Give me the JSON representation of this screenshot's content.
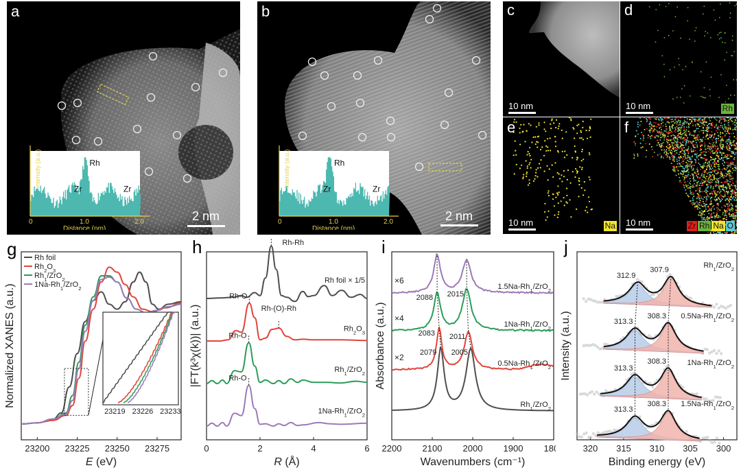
{
  "panels": {
    "a": {
      "label": "a",
      "scale": "2 nm",
      "inset": {
        "ylabel": "Intensity (a.u.)",
        "xlabel": "Distance (nm)",
        "xticks": [
          "0",
          "1.0",
          "2.0"
        ],
        "peak_labels": [
          "Zr",
          "Rh",
          "Zr"
        ]
      }
    },
    "b": {
      "label": "b",
      "scale": "2 nm",
      "inset": {
        "ylabel": "Intensity (a.u.)",
        "xlabel": "Distance (nm)",
        "xticks": [
          "0",
          "1.0",
          "2.0"
        ],
        "peak_labels": [
          "Zr",
          "Rh",
          "Zr"
        ]
      }
    },
    "c": {
      "label": "c",
      "scale": "10 nm"
    },
    "d": {
      "label": "d",
      "scale": "10 nm",
      "element": "Rh",
      "color": "#6db33f"
    },
    "e": {
      "label": "e",
      "scale": "10 nm",
      "element": "Na",
      "color": "#f2e530"
    },
    "f": {
      "label": "f",
      "scale": "10 nm",
      "elements": [
        {
          "name": "Zr",
          "color": "#e0201b"
        },
        {
          "name": "Rh",
          "color": "#6db33f"
        },
        {
          "name": "Na",
          "color": "#f2e530"
        },
        {
          "name": "O",
          "color": "#5ec8d4"
        }
      ]
    }
  },
  "chart_data": [
    {
      "id": "g",
      "label": "g",
      "type": "line",
      "title": "",
      "xlabel_italic": "E",
      "xlabel_unit": " (eV)",
      "ylabel": "Normalized XANES (a.u.)",
      "xlim": [
        23190,
        23290
      ],
      "xticks": [
        "23200",
        "23225",
        "23250",
        "23275"
      ],
      "xtick_values": [
        23200,
        23225,
        23250,
        23275
      ],
      "legend_position": "top-left",
      "series": [
        {
          "name": "Rh foil",
          "color": "#4d4d4d",
          "points": [
            [
              23190,
              0.05
            ],
            [
              23200,
              0.06
            ],
            [
              23210,
              0.09
            ],
            [
              23215,
              0.14
            ],
            [
              23220,
              0.35
            ],
            [
              23225,
              0.62
            ],
            [
              23230,
              0.88
            ],
            [
              23235,
              1.05
            ],
            [
              23240,
              1.12
            ],
            [
              23245,
              1.02
            ],
            [
              23250,
              0.98
            ],
            [
              23255,
              1.04
            ],
            [
              23260,
              1.2
            ],
            [
              23264,
              1.28
            ],
            [
              23268,
              1.2
            ],
            [
              23272,
              1.02
            ],
            [
              23276,
              0.98
            ],
            [
              23282,
              1.02
            ],
            [
              23290,
              1.04
            ]
          ]
        },
        {
          "name": "Rh2O3",
          "color": "#e0443b",
          "points": [
            [
              23190,
              0.05
            ],
            [
              23200,
              0.06
            ],
            [
              23210,
              0.08
            ],
            [
              23218,
              0.12
            ],
            [
              23222,
              0.2
            ],
            [
              23226,
              0.42
            ],
            [
              23230,
              0.72
            ],
            [
              23235,
              0.98
            ],
            [
              23240,
              1.2
            ],
            [
              23245,
              1.32
            ],
            [
              23250,
              1.28
            ],
            [
              23255,
              1.18
            ],
            [
              23260,
              1.08
            ],
            [
              23266,
              0.98
            ],
            [
              23272,
              0.96
            ],
            [
              23280,
              0.99
            ],
            [
              23290,
              1.03
            ]
          ]
        },
        {
          "name": "Rh1/ZrO2",
          "color": "#2a9d5a",
          "points": [
            [
              23190,
              0.05
            ],
            [
              23200,
              0.06
            ],
            [
              23210,
              0.09
            ],
            [
              23218,
              0.14
            ],
            [
              23222,
              0.28
            ],
            [
              23226,
              0.55
            ],
            [
              23230,
              0.85
            ],
            [
              23235,
              1.08
            ],
            [
              23240,
              1.25
            ],
            [
              23245,
              1.25
            ],
            [
              23250,
              1.2
            ],
            [
              23256,
              1.07
            ],
            [
              23262,
              0.98
            ],
            [
              23268,
              0.95
            ],
            [
              23275,
              0.97
            ],
            [
              23282,
              1.0
            ],
            [
              23290,
              1.02
            ]
          ]
        },
        {
          "name": "1Na-Rh1/ZrO2",
          "color": "#9b7ab8",
          "points": [
            [
              23190,
              0.05
            ],
            [
              23200,
              0.06
            ],
            [
              23210,
              0.09
            ],
            [
              23218,
              0.13
            ],
            [
              23222,
              0.24
            ],
            [
              23226,
              0.5
            ],
            [
              23230,
              0.8
            ],
            [
              23235,
              1.05
            ],
            [
              23240,
              1.22
            ],
            [
              23245,
              1.24
            ],
            [
              23250,
              1.2
            ],
            [
              23256,
              1.07
            ],
            [
              23262,
              0.98
            ],
            [
              23268,
              0.95
            ],
            [
              23275,
              0.97
            ],
            [
              23282,
              1.0
            ],
            [
              23290,
              1.02
            ]
          ]
        }
      ],
      "inset": {
        "xticks": [
          "23219",
          "23226",
          "23233"
        ]
      }
    },
    {
      "id": "h",
      "label": "h",
      "type": "line",
      "xlabel_italic": "R",
      "xlabel_unit": " (Å)",
      "ylabel": "|FT(k³χ(k))| (a.u.)",
      "xlim": [
        0,
        6
      ],
      "xticks": [
        "0",
        "2",
        "4",
        "6"
      ],
      "xtick_values": [
        0,
        2,
        4,
        6
      ],
      "series": [
        {
          "name": "Rh foil × 1/5",
          "color": "#4d4d4d",
          "offset": 3.0,
          "points": [
            [
              0,
              0
            ],
            [
              0.5,
              0.01
            ],
            [
              1.0,
              0.02
            ],
            [
              1.3,
              0.05
            ],
            [
              1.5,
              0.02
            ],
            [
              1.8,
              0.1
            ],
            [
              2.0,
              0.05
            ],
            [
              2.2,
              0.35
            ],
            [
              2.42,
              0.9
            ],
            [
              2.6,
              0.5
            ],
            [
              2.8,
              0.05
            ],
            [
              3.0,
              0.02
            ],
            [
              3.3,
              -0.05
            ],
            [
              3.6,
              0.12
            ],
            [
              3.8,
              0.03
            ],
            [
              4.0,
              0.05
            ],
            [
              4.4,
              0.22
            ],
            [
              4.7,
              0.05
            ],
            [
              5.05,
              0.14
            ],
            [
              5.4,
              0.02
            ],
            [
              5.75,
              0.07
            ],
            [
              6.0,
              0
            ]
          ]
        },
        {
          "name": "Rh2O3",
          "color": "#e0443b",
          "offset": 2.0,
          "points": [
            [
              0,
              0
            ],
            [
              0.5,
              0
            ],
            [
              0.8,
              0.02
            ],
            [
              1.1,
              0.18
            ],
            [
              1.3,
              0.15
            ],
            [
              1.6,
              0.65
            ],
            [
              1.8,
              0.4
            ],
            [
              2.0,
              0.02
            ],
            [
              2.2,
              0.05
            ],
            [
              2.45,
              0.2
            ],
            [
              2.7,
              0.22
            ],
            [
              3.0,
              0.08
            ],
            [
              3.3,
              0.02
            ],
            [
              3.6,
              0.03
            ],
            [
              4.0,
              0.02
            ],
            [
              4.5,
              0.02
            ],
            [
              5.0,
              0.02
            ],
            [
              6.0,
              0.01
            ]
          ]
        },
        {
          "name": "Rh1/ZrO2",
          "color": "#2a9d5a",
          "offset": 1.0,
          "points": [
            [
              0,
              0
            ],
            [
              0.2,
              0.05
            ],
            [
              0.4,
              0
            ],
            [
              0.6,
              0.06
            ],
            [
              0.75,
              0
            ],
            [
              1.05,
              0.22
            ],
            [
              1.3,
              0.2
            ],
            [
              1.58,
              0.7
            ],
            [
              1.8,
              0.3
            ],
            [
              2.0,
              0.02
            ],
            [
              2.2,
              0.06
            ],
            [
              2.5,
              0
            ],
            [
              2.7,
              0.05
            ],
            [
              2.9,
              0
            ],
            [
              3.15,
              0.08
            ],
            [
              3.4,
              0.02
            ],
            [
              3.6,
              0.06
            ],
            [
              4.0,
              0.02
            ],
            [
              4.5,
              0.02
            ],
            [
              5.0,
              0.01
            ],
            [
              5.6,
              0.04
            ],
            [
              6.0,
              0.02
            ]
          ]
        },
        {
          "name": "1Na-Rh1/ZrO2",
          "color": "#9b7ab8",
          "offset": 0.0,
          "points": [
            [
              0,
              0
            ],
            [
              0.2,
              0.05
            ],
            [
              0.4,
              0
            ],
            [
              0.6,
              0.06
            ],
            [
              0.75,
              0
            ],
            [
              1.05,
              0.22
            ],
            [
              1.3,
              0.18
            ],
            [
              1.58,
              0.7
            ],
            [
              1.8,
              0.3
            ],
            [
              2.0,
              0.03
            ],
            [
              2.2,
              0.04
            ],
            [
              2.5,
              0
            ],
            [
              2.7,
              0.04
            ],
            [
              2.9,
              0.01
            ],
            [
              3.15,
              0.06
            ],
            [
              3.4,
              0.01
            ],
            [
              3.6,
              0.02
            ],
            [
              4.2,
              0.06
            ],
            [
              4.6,
              0.04
            ],
            [
              5.0,
              0.03
            ],
            [
              6.0,
              0.05
            ]
          ]
        }
      ],
      "annotations": [
        {
          "text": "Rh-Rh",
          "series": 0
        },
        {
          "text": "Rh-O",
          "series": 1
        },
        {
          "text": "Rh-(O)-Rh",
          "series": 1
        },
        {
          "text": "Rh-O",
          "series": 2
        },
        {
          "text": "Rh-O",
          "series": 3
        }
      ]
    },
    {
      "id": "i",
      "label": "i",
      "type": "line",
      "xlabel": "Wavenumbers (cm⁻¹)",
      "ylabel": "Absorbance (a.u.)",
      "xlim": [
        2200,
        1800
      ],
      "xticks": [
        "2200",
        "2100",
        "2000",
        "1900",
        "1800"
      ],
      "xtick_values": [
        2200,
        2100,
        2000,
        1900,
        1800
      ],
      "series": [
        {
          "name": "Rh1/ZrO2",
          "color": "#4d4d4d",
          "multiplier": "",
          "peaks": [
            2079,
            2005
          ]
        },
        {
          "name": "0.5Na-Rh1/ZrO2",
          "color": "#e0443b",
          "multiplier": "×2",
          "peaks": [
            2083,
            2011
          ]
        },
        {
          "name": "1Na-Rh1/ZrO2",
          "color": "#2a9d5a",
          "multiplier": "×4",
          "peaks": [
            2088,
            2015
          ]
        },
        {
          "name": "1.5Na-Rh1/ZrO2",
          "color": "#9b7ab8",
          "multiplier": "×6",
          "peaks": [
            2088,
            2015
          ]
        }
      ],
      "peak_labels": [
        {
          "text": "2079"
        },
        {
          "text": "2005"
        },
        {
          "text": "2083"
        },
        {
          "text": "2011"
        },
        {
          "text": "2088"
        },
        {
          "text": "2015"
        }
      ]
    },
    {
      "id": "j",
      "label": "j",
      "type": "line",
      "xlabel": "Binding energy (eV)",
      "ylabel": "Intensity (a.u.)",
      "xlim": [
        322,
        298
      ],
      "xticks": [
        "320",
        "315",
        "310",
        "305",
        "300"
      ],
      "xtick_values": [
        320,
        315,
        310,
        305,
        300
      ],
      "fill_colors": {
        "high_be": "#b7cde8",
        "low_be": "#f0b4ad"
      },
      "series": [
        {
          "name": "Rh1/ZrO2",
          "peaks": [
            312.9,
            307.9
          ],
          "labels": [
            "312.9",
            "307.9"
          ]
        },
        {
          "name": "0.5Na-Rh1/ZrO2",
          "peaks": [
            313.3,
            308.3
          ],
          "labels": [
            "313.3",
            "308.3"
          ]
        },
        {
          "name": "1Na-Rh1/ZrO2",
          "peaks": [
            313.3,
            308.3
          ],
          "labels": [
            "313.3",
            "308.3"
          ]
        },
        {
          "name": "1.5Na-Rh1/ZrO2",
          "peaks": [
            313.3,
            308.3
          ],
          "labels": [
            "313.3",
            "308.3"
          ]
        }
      ]
    }
  ]
}
